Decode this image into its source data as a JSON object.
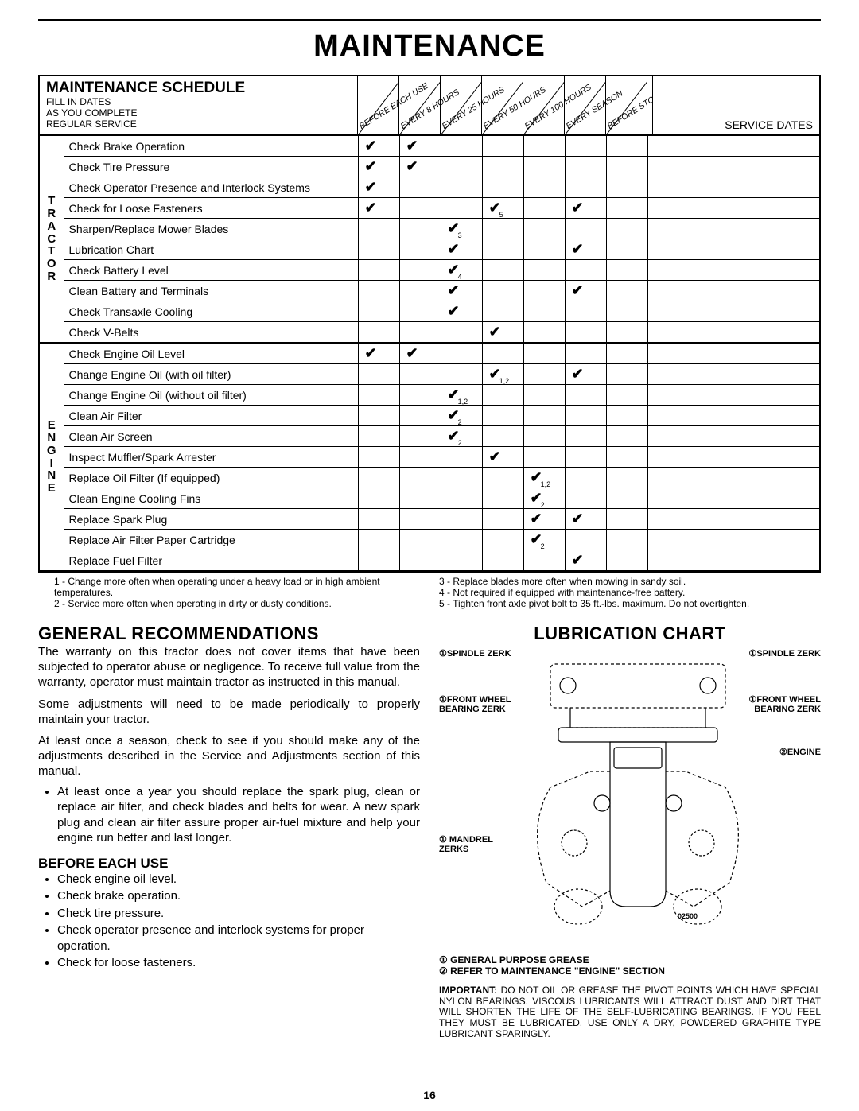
{
  "title": "MAINTENANCE",
  "schedule": {
    "heading": "MAINTENANCE SCHEDULE",
    "subheading": "FILL IN DATES\nAS YOU COMPLETE\nREGULAR SERVICE",
    "columns": [
      "BEFORE EACH USE",
      "EVERY 8 HOURS",
      "EVERY 25 HOURS",
      "EVERY 50 HOURS",
      "EVERY 100 HOURS",
      "EVERY SEASON",
      "BEFORE STORAGE"
    ],
    "service_dates_label": "SERVICE DATES",
    "groups": [
      {
        "label": "T\nR\nA\nC\nT\nO\nR",
        "rows": [
          {
            "task": "Check Brake Operation",
            "marks": [
              "✔",
              "✔",
              "",
              "",
              "",
              "",
              ""
            ]
          },
          {
            "task": "Check Tire Pressure",
            "marks": [
              "✔",
              "✔",
              "",
              "",
              "",
              "",
              ""
            ]
          },
          {
            "task": "Check Operator Presence and Interlock Systems",
            "marks": [
              "✔",
              "",
              "",
              "",
              "",
              "",
              ""
            ]
          },
          {
            "task": "Check for Loose Fasteners",
            "marks": [
              "✔",
              "",
              "",
              "✔5",
              "",
              "✔",
              ""
            ]
          },
          {
            "task": "Sharpen/Replace Mower Blades",
            "marks": [
              "",
              "",
              "✔3",
              "",
              "",
              "",
              ""
            ]
          },
          {
            "task": "Lubrication Chart",
            "marks": [
              "",
              "",
              "✔",
              "",
              "",
              "✔",
              ""
            ]
          },
          {
            "task": "Check Battery Level",
            "marks": [
              "",
              "",
              "✔4",
              "",
              "",
              "",
              ""
            ]
          },
          {
            "task": "Clean Battery and Terminals",
            "marks": [
              "",
              "",
              "✔",
              "",
              "",
              "✔",
              ""
            ]
          },
          {
            "task": "Check Transaxle Cooling",
            "marks": [
              "",
              "",
              "✔",
              "",
              "",
              "",
              ""
            ]
          },
          {
            "task": "Check V-Belts",
            "marks": [
              "",
              "",
              "",
              "✔",
              "",
              "",
              ""
            ]
          }
        ]
      },
      {
        "label": "E\nN\nG\nI\nN\nE",
        "rows": [
          {
            "task": "Check Engine Oil Level",
            "marks": [
              "✔",
              "✔",
              "",
              "",
              "",
              "",
              ""
            ]
          },
          {
            "task": "Change Engine Oil (with oil filter)",
            "marks": [
              "",
              "",
              "",
              "✔1,2",
              "",
              "✔",
              ""
            ]
          },
          {
            "task": "Change Engine Oil (without oil filter)",
            "marks": [
              "",
              "",
              "✔1,2",
              "",
              "",
              "",
              ""
            ]
          },
          {
            "task": "Clean Air Filter",
            "marks": [
              "",
              "",
              "✔2",
              "",
              "",
              "",
              ""
            ]
          },
          {
            "task": "Clean Air Screen",
            "marks": [
              "",
              "",
              "✔2",
              "",
              "",
              "",
              ""
            ]
          },
          {
            "task": "Inspect Muffler/Spark Arrester",
            "marks": [
              "",
              "",
              "",
              "✔",
              "",
              "",
              ""
            ]
          },
          {
            "task": "Replace Oil Filter (If equipped)",
            "marks": [
              "",
              "",
              "",
              "",
              "✔1,2",
              "",
              ""
            ]
          },
          {
            "task": "Clean Engine Cooling Fins",
            "marks": [
              "",
              "",
              "",
              "",
              "✔2",
              "",
              ""
            ]
          },
          {
            "task": "Replace Spark Plug",
            "marks": [
              "",
              "",
              "",
              "",
              "✔",
              "✔",
              ""
            ]
          },
          {
            "task": "Replace Air Filter Paper Cartridge",
            "marks": [
              "",
              "",
              "",
              "",
              "✔2",
              "",
              ""
            ]
          },
          {
            "task": "Replace Fuel Filter",
            "marks": [
              "",
              "",
              "",
              "",
              "",
              "✔",
              ""
            ]
          }
        ]
      }
    ],
    "footnotes_left": "1 - Change more often when operating under a heavy load or in high ambient temperatures.\n2 - Service more often when operating in dirty or dusty conditions.",
    "footnotes_right": "3 - Replace blades more often when mowing in sandy soil.\n4 - Not required if equipped with maintenance-free battery.\n5 - Tighten front axle pivot bolt to 35 ft.-lbs. maximum. Do not overtighten."
  },
  "general": {
    "heading": "GENERAL RECOMMENDATIONS",
    "p1": "The warranty on this tractor does not cover items that have been subjected to operator abuse or negligence. To receive full value from the warranty, operator must maintain tractor as instructed in this manual.",
    "p2": "Some adjustments will need to be made periodically to properly maintain your tractor.",
    "p3": "At least once a season, check to see if you should make any of the adjustments described in the Service and Adjustments section of this manual.",
    "bullet1": "At least once a year you should replace the spark plug, clean or replace air filter, and check blades and belts for wear.  A new spark plug and clean air filter assure proper air-fuel mixture and help your engine run better and last longer."
  },
  "before": {
    "heading": "BEFORE EACH USE",
    "items": [
      "Check engine oil level.",
      "Check brake operation.",
      "Check tire pressure.",
      "Check operator presence and interlock systems for proper operation.",
      "Check for loose fasteners."
    ]
  },
  "lube": {
    "heading": "LUBRICATION CHART",
    "labels": {
      "spindle_l": "①SPINDLE ZERK",
      "spindle_r": "①SPINDLE ZERK",
      "frontwheel_l": "①FRONT WHEEL BEARING  ZERK",
      "frontwheel_r": "①FRONT WHEEL BEARING  ZERK",
      "engine": "②ENGINE",
      "mandrel": "① MANDREL ZERKS",
      "partnum": "02500"
    },
    "legend1": "①  GENERAL PURPOSE GREASE",
    "legend2": "②  REFER TO MAINTENANCE \"ENGINE\" SECTION",
    "important": "IMPORTANT:  DO NOT OIL OR GREASE THE PIVOT POINTS WHICH HAVE SPECIAL NYLON BEARINGS.  VISCOUS LUBRICANTS WILL ATTRACT DUST AND DIRT THAT WILL SHORTEN THE LIFE OF THE SELF-LUBRICATING BEARINGS.  IF YOU FEEL THEY MUST BE LUBRICATED, USE ONLY A DRY, POWDERED GRAPHITE TYPE LUBRICANT SPARINGLY."
  },
  "page_number": "16"
}
